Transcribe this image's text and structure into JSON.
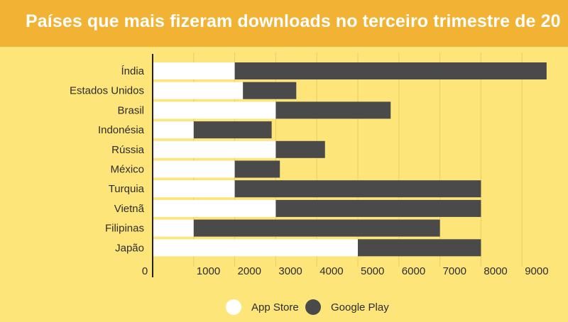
{
  "header": {
    "title": "Países que mais fizeram downloads no terceiro trimestre de 20"
  },
  "colors": {
    "background": "#fde57a",
    "header": "#f2b233",
    "app_store": "#ffffff",
    "google_play": "#4a4a4a",
    "grid": "#e9cf63",
    "text": "#2c2c2c"
  },
  "chart_data": {
    "type": "bar",
    "orientation": "horizontal",
    "stacked": true,
    "categories": [
      "Índia",
      "Estados Unidos",
      "Brasil",
      "Indonésia",
      "Rússia",
      "México",
      "Turquia",
      "Vietnã",
      "Filipinas",
      "Japão"
    ],
    "series": [
      {
        "name": "App Store",
        "values": [
          2000,
          2200,
          3000,
          1000,
          3000,
          2000,
          2000,
          3000,
          1000,
          5000
        ]
      },
      {
        "name": "Google Play",
        "values": [
          7600,
          1300,
          2800,
          1900,
          1200,
          1100,
          6000,
          5000,
          6000,
          3000
        ]
      }
    ],
    "xlim": [
      0,
      9600
    ],
    "xticks": [
      0,
      1000,
      2000,
      3000,
      4000,
      5000,
      6000,
      7000,
      8000,
      9000
    ],
    "grid": true,
    "legend_position": "bottom"
  }
}
